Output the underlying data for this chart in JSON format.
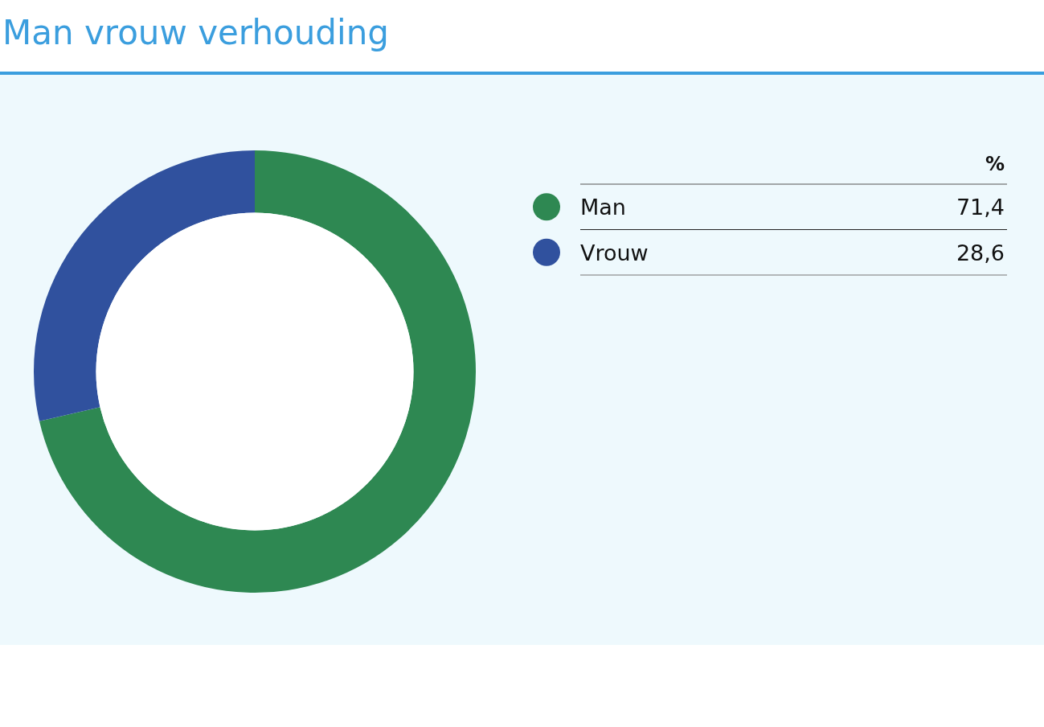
{
  "chart_data": {
    "type": "donut",
    "title": "Man vrouw verhouding",
    "categories": [
      "Man",
      "Vrouw"
    ],
    "values": [
      71.4,
      28.6
    ],
    "colors": [
      "#2e8852",
      "#30519e"
    ],
    "value_labels": [
      "71,4",
      "28,6"
    ],
    "legend_title": "%",
    "legend": "right"
  }
}
